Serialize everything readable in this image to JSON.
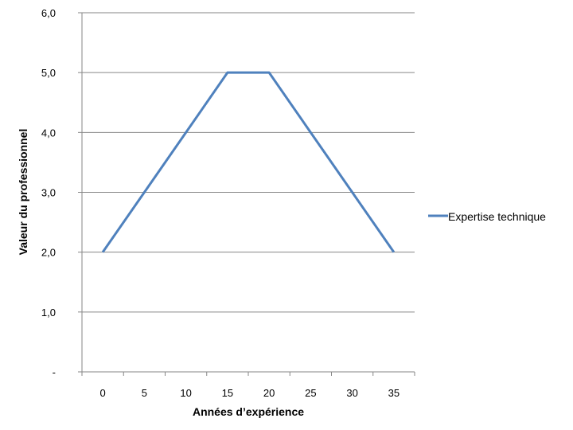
{
  "chart_data": {
    "type": "line",
    "x": [
      0,
      5,
      10,
      15,
      20,
      25,
      30,
      35
    ],
    "series": [
      {
        "name": "Expertise technique",
        "values": [
          2.0,
          3.0,
          4.0,
          5.0,
          5.0,
          4.0,
          3.0,
          2.0
        ],
        "color": "#4F81BD"
      }
    ],
    "xlabel": "Années d’expérience",
    "ylabel": "Valeur du professionnel",
    "x_tick_labels": [
      "0",
      "5",
      "10",
      "15",
      "20",
      "25",
      "30",
      "35"
    ],
    "y_tick_labels": [
      "-",
      "1,0",
      "2,0",
      "3,0",
      "4,0",
      "5,0",
      "6,0"
    ],
    "ylim": [
      0,
      6
    ],
    "grid": "horizontal",
    "legend_position": "right"
  }
}
